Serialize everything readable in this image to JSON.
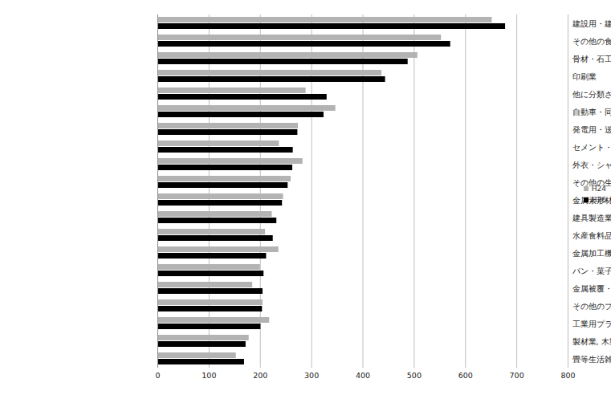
{
  "chart_data": {
    "type": "bar",
    "orientation": "horizontal",
    "categories": [
      "建設用・建築用金属製品製造業",
      "その他の食料品製造業",
      "骨材・石工品等製造業",
      "印刷業",
      "他に分類されない製造業",
      "自動車・同附属品製造業",
      "発電用・送電用・配電用電気機械器具製造業",
      "セメント・同製品製造業",
      "外衣・シャツ製造業(和式を除く)",
      "その他の生産用機械・同部分品製造業",
      "金属素形材製品製造業",
      "建具製造業",
      "水産食料品製造業",
      "金属加工機械製造業",
      "パン・菓子製造業",
      "金属被覆・彫刻業, 熱処理業",
      "その他のプラスチック製品製造業",
      "工業用プラスチック製品製造業",
      "製材業, 木製品製造業",
      "畳等生活雑貨製品製造業"
    ],
    "series": [
      {
        "name": "H24",
        "color": "#b3b3b3",
        "values": [
          652,
          553,
          507,
          437,
          289,
          347,
          274,
          237,
          283,
          260,
          245,
          223,
          210,
          236,
          200,
          185,
          205,
          218,
          178,
          153
        ]
      },
      {
        "name": "H26",
        "color": "#000000",
        "values": [
          678,
          571,
          488,
          444,
          330,
          324,
          273,
          264,
          263,
          254,
          243,
          232,
          225,
          212,
          207,
          205,
          204,
          201,
          172,
          169
        ]
      }
    ],
    "xlim": [
      0,
      800
    ],
    "xticks": [
      0,
      100,
      200,
      300,
      400,
      500,
      600,
      700,
      800
    ],
    "grid": true,
    "legend": "right"
  }
}
